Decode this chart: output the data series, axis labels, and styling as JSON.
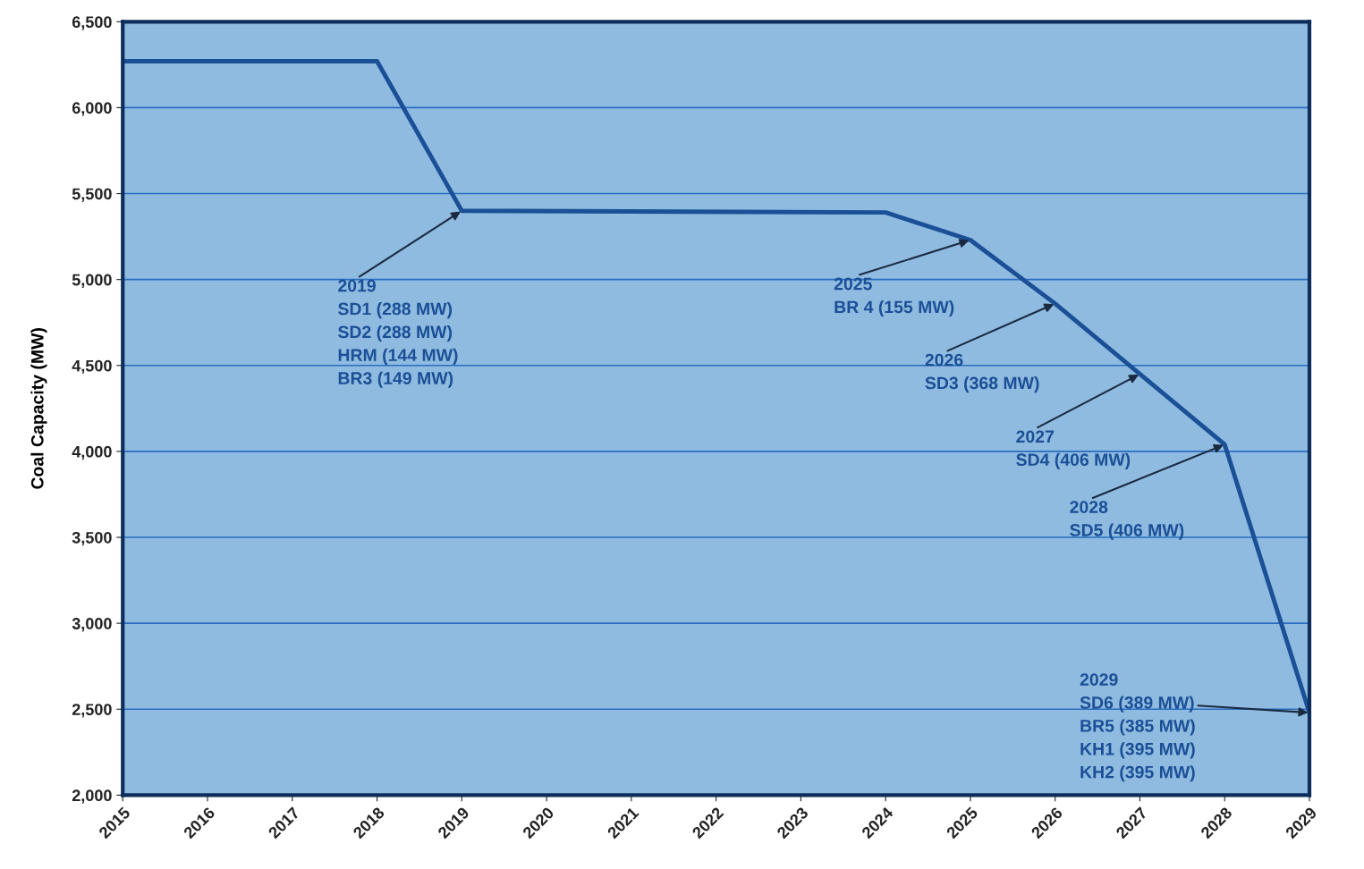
{
  "chart_data": {
    "type": "line",
    "ylabel": "Coal Capacity (MW)",
    "x": [
      2015,
      2018,
      2019,
      2024,
      2025,
      2026,
      2027,
      2028,
      2029
    ],
    "series": [
      {
        "color": "#1b4f96",
        "values": [
          6270,
          6270,
          5400,
          5390,
          5230,
          4860,
          4450,
          4040,
          2480
        ]
      }
    ],
    "xlim": [
      2015,
      2029
    ],
    "xticks": [
      2015,
      2016,
      2017,
      2018,
      2019,
      2020,
      2021,
      2022,
      2023,
      2024,
      2025,
      2026,
      2027,
      2028,
      2029
    ],
    "ylim": [
      2000,
      6500
    ],
    "yticks": [
      {
        "value": 2000,
        "label": "2,000"
      },
      {
        "value": 2500,
        "label": "2,500"
      },
      {
        "value": 3000,
        "label": "3,000"
      },
      {
        "value": 3500,
        "label": "3,500"
      },
      {
        "value": 4000,
        "label": "4,000"
      },
      {
        "value": 4500,
        "label": "4,500"
      },
      {
        "value": 5000,
        "label": "5,000"
      },
      {
        "value": 5500,
        "label": "5,500"
      },
      {
        "value": 6000,
        "label": "6,000"
      },
      {
        "value": 6500,
        "label": "6,500"
      }
    ],
    "grid": "y",
    "marker": "none",
    "line_style": "solid",
    "legend": false,
    "annotations": [
      {
        "text": "2019\nSD1 (288 MW)\nSD2 (288 MW)\nHRM (144 MW)\nBR3 (149 MW)",
        "x": 2019,
        "y": 5400
      },
      {
        "text": "2025\nBR 4 (155 MW)",
        "x": 2025,
        "y": 5230
      },
      {
        "text": "2026\nSD3 (368 MW)",
        "x": 2026,
        "y": 4860
      },
      {
        "text": "2027\nSD4 (406 MW)",
        "x": 2027,
        "y": 4450
      },
      {
        "text": "2028\nSD5 (406 MW)",
        "x": 2028,
        "y": 4040
      },
      {
        "text": "2029\nSD6 (389 MW)\nBR5 (385 MW)\nKH1 (395 MW)\nKH2 (395 MW)",
        "x": 2029,
        "y": 2480
      }
    ]
  }
}
